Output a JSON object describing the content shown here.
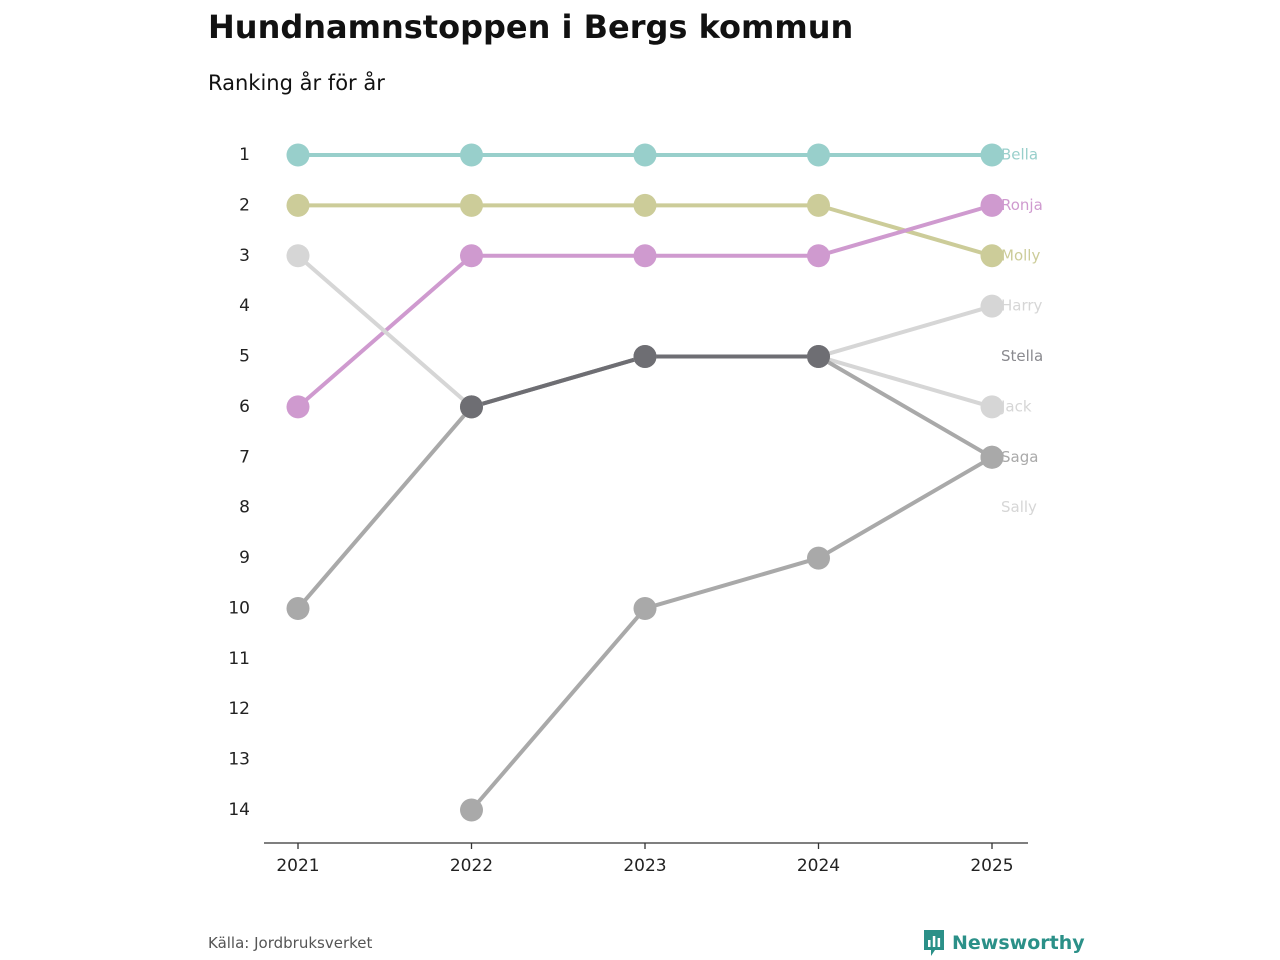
{
  "title": "Hundnamnstoppen i Bergs kommun",
  "subtitle": "Ranking år för år",
  "source": "Källa: Jordbruksverket",
  "brand": {
    "name": "Newsworthy",
    "color": "#2b9088",
    "icon": "newsworthy-logo-icon"
  },
  "chart_data": {
    "type": "line",
    "subtype": "bump-chart",
    "title": "Hundnamnstoppen i Bergs kommun",
    "subtitle": "Ranking år för år",
    "xlabel": "",
    "ylabel": "",
    "x": [
      2021,
      2022,
      2023,
      2024,
      2025
    ],
    "y_ticks": [
      1,
      2,
      3,
      4,
      5,
      6,
      7,
      8,
      9,
      10,
      11,
      12,
      13,
      14
    ],
    "ylim": [
      1,
      14
    ],
    "y_inverted": true,
    "grid": false,
    "legend": "direct-labels-right",
    "series": [
      {
        "name": "Bella",
        "color": "#98cfcb",
        "values": [
          1,
          1,
          1,
          1,
          1
        ]
      },
      {
        "name": "Molly",
        "color": "#cccc99",
        "values": [
          2,
          2,
          2,
          2,
          3
        ]
      },
      {
        "name": "Ronja",
        "color": "#cf9acf",
        "values": [
          6,
          3,
          3,
          3,
          2
        ]
      },
      {
        "name": "Jack",
        "color": "#d6d6d6",
        "values": [
          3,
          6,
          5,
          5,
          6
        ]
      },
      {
        "name": "Harry",
        "color": "#d6d6d6",
        "values": [
          null,
          6,
          5,
          5,
          4
        ]
      },
      {
        "name": "Saga",
        "color": "#a9a9a9",
        "values": [
          10,
          6,
          5,
          5,
          7
        ]
      },
      {
        "name": "Sally",
        "color": "#a9a9a9",
        "values": [
          null,
          14,
          10,
          9,
          7
        ]
      },
      {
        "name": "Stella",
        "color": "#6e6e73",
        "values": [
          null,
          6,
          5,
          5,
          null
        ]
      }
    ],
    "end_labels": [
      {
        "name": "Bella",
        "rank": 1,
        "color": "#98cfcb"
      },
      {
        "name": "Ronja",
        "rank": 2,
        "color": "#cf9acf"
      },
      {
        "name": "Molly",
        "rank": 3,
        "color": "#cccc99"
      },
      {
        "name": "Harry",
        "rank": 4,
        "color": "#d6d6d6"
      },
      {
        "name": "Stella",
        "rank": 5,
        "color": "#8a8a8f"
      },
      {
        "name": "Jack",
        "rank": 6,
        "color": "#d6d6d6"
      },
      {
        "name": "Saga",
        "rank": 7,
        "color": "#a9a9a9"
      },
      {
        "name": "Sally",
        "rank": 8,
        "color": "#d6d6d6"
      }
    ]
  }
}
